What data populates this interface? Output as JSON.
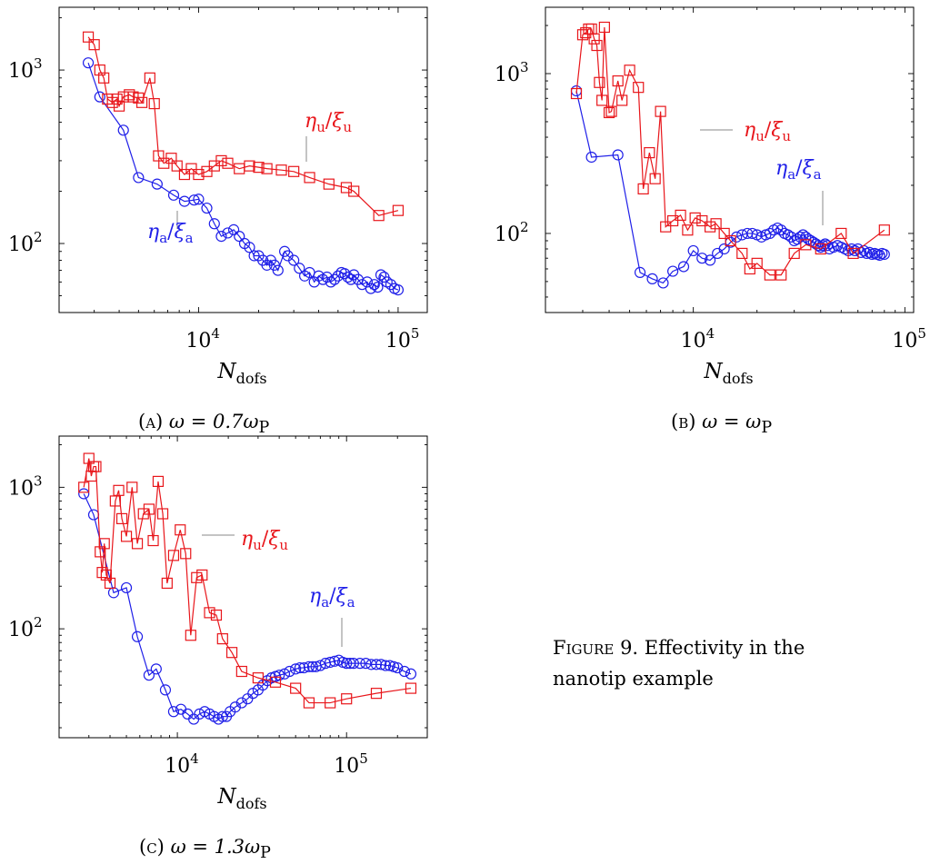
{
  "colors": {
    "red": "#e8161b",
    "blue": "#1f1fe8"
  },
  "figure_caption": {
    "label": "Figure",
    "number": "9.",
    "text": "Effectivity in the nanotip example"
  },
  "captions": [
    {
      "tag": "(a)",
      "eq": "ω = 0.7ω",
      "sub": "P"
    },
    {
      "tag": "(b)",
      "eq": "ω = ω",
      "sub": "P"
    },
    {
      "tag": "(c)",
      "eq": "ω = 1.3ω",
      "sub": "P"
    }
  ],
  "chart_data": [
    {
      "type": "line",
      "xscale": "log",
      "yscale": "log",
      "xlim": [
        2000,
        140000
      ],
      "ylim": [
        40,
        2300
      ],
      "xlabel": "N",
      "xlabel_sub": "dofs",
      "xticks": [
        "10^4",
        "10^5"
      ],
      "yticks": [
        "10^2",
        "10^3"
      ],
      "series": [
        {
          "name": "ηu/ξu",
          "marker": "square",
          "color": "red",
          "x": [
            2800,
            3000,
            3200,
            3350,
            3500,
            3700,
            3900,
            4000,
            4200,
            4500,
            4700,
            5000,
            5200,
            5700,
            6000,
            6300,
            6700,
            7300,
            7800,
            8500,
            9200,
            10000,
            11000,
            12000,
            13000,
            14000,
            16000,
            18000,
            20000,
            22000,
            26000,
            30000,
            36000,
            45000,
            55000,
            60000,
            80000,
            100000
          ],
          "y": [
            1550,
            1400,
            1000,
            900,
            680,
            650,
            680,
            620,
            700,
            720,
            700,
            690,
            650,
            900,
            640,
            320,
            290,
            310,
            280,
            250,
            270,
            250,
            260,
            280,
            300,
            290,
            270,
            280,
            275,
            270,
            265,
            260,
            240,
            220,
            210,
            200,
            145,
            155
          ]
        },
        {
          "name": "ηa/ξa",
          "marker": "circle",
          "color": "blue",
          "x": [
            2800,
            3200,
            4200,
            5000,
            6200,
            7500,
            8500,
            9500,
            10000,
            11000,
            12000,
            13000,
            14000,
            15000,
            16000,
            17000,
            18000,
            19000,
            20000,
            21000,
            22000,
            23000,
            24000,
            25000,
            27000,
            28000,
            30000,
            32000,
            34000,
            36000,
            38000,
            40000,
            42000,
            44000,
            46000,
            48000,
            50000,
            52000,
            54000,
            56000,
            58000,
            60000,
            63000,
            66000,
            70000,
            73000,
            76000,
            79000,
            82000,
            85000,
            88000,
            92000,
            96000,
            100000
          ],
          "y": [
            1100,
            700,
            450,
            240,
            220,
            190,
            175,
            178,
            180,
            160,
            130,
            110,
            115,
            120,
            110,
            100,
            95,
            85,
            85,
            80,
            75,
            80,
            75,
            70,
            90,
            85,
            80,
            72,
            65,
            68,
            60,
            65,
            62,
            64,
            60,
            62,
            65,
            68,
            67,
            64,
            62,
            66,
            62,
            58,
            60,
            55,
            58,
            56,
            66,
            64,
            60,
            58,
            55,
            54
          ]
        }
      ],
      "annotations": [
        {
          "text": "ηu/ξu"
        },
        {
          "text": "ηa/ξa"
        }
      ]
    },
    {
      "type": "line",
      "xscale": "log",
      "yscale": "log",
      "xlim": [
        2000,
        110000
      ],
      "ylim": [
        32,
        2600
      ],
      "xlabel": "N",
      "xlabel_sub": "dofs",
      "xticks": [
        "10^4",
        "10^5"
      ],
      "yticks": [
        "10^2",
        "10^3"
      ],
      "series": [
        {
          "name": "ηu/ξu",
          "marker": "square",
          "color": "red",
          "x": [
            2800,
            3000,
            3100,
            3200,
            3300,
            3400,
            3500,
            3600,
            3700,
            3800,
            4000,
            4100,
            4400,
            4600,
            5000,
            5500,
            5800,
            6200,
            6600,
            7000,
            7400,
            8000,
            8700,
            9400,
            10200,
            11000,
            12000,
            12800,
            14000,
            15000,
            17000,
            18500,
            20000,
            23000,
            26000,
            30000,
            34000,
            40000,
            50000,
            57000,
            80000
          ],
          "y": [
            750,
            1750,
            1800,
            1900,
            1900,
            1650,
            1500,
            880,
            680,
            1950,
            570,
            580,
            900,
            680,
            1050,
            820,
            190,
            320,
            220,
            580,
            110,
            120,
            130,
            105,
            125,
            120,
            110,
            115,
            100,
            90,
            75,
            60,
            65,
            55,
            55,
            75,
            85,
            80,
            100,
            75,
            105
          ]
        },
        {
          "name": "ηa/ξa",
          "marker": "circle",
          "color": "blue",
          "x": [
            2800,
            3300,
            4400,
            5600,
            6400,
            7200,
            8000,
            9000,
            10000,
            11000,
            12000,
            13000,
            14000,
            15000,
            16000,
            17000,
            18000,
            19000,
            20000,
            21000,
            22000,
            23000,
            24000,
            25000,
            26000,
            27000,
            28000,
            29000,
            30000,
            31000,
            32000,
            33000,
            34000,
            35000,
            36000,
            37000,
            38000,
            39000,
            40000,
            41000,
            42000,
            43000,
            44000,
            46000,
            48000,
            50000,
            52000,
            54000,
            56000,
            58000,
            60000,
            62000,
            64000,
            66000,
            68000,
            70000,
            72000,
            74000,
            76000,
            78000,
            80000
          ],
          "y": [
            780,
            300,
            310,
            57,
            52,
            49,
            58,
            62,
            78,
            70,
            68,
            75,
            80,
            88,
            95,
            98,
            100,
            100,
            98,
            95,
            98,
            100,
            105,
            108,
            105,
            100,
            98,
            95,
            90,
            92,
            95,
            98,
            95,
            92,
            90,
            88,
            86,
            84,
            82,
            84,
            86,
            84,
            80,
            82,
            84,
            82,
            80,
            78,
            80,
            78,
            80,
            76,
            78,
            75,
            76,
            74,
            75,
            74,
            73,
            75,
            74
          ]
        }
      ],
      "annotations": [
        {
          "text": "ηu/ξu"
        },
        {
          "text": "ηa/ξa"
        }
      ]
    },
    {
      "type": "line",
      "xscale": "log",
      "yscale": "log",
      "xlim": [
        2000,
        300000
      ],
      "ylim": [
        17,
        2300
      ],
      "xlabel": "N",
      "xlabel_sub": "dofs",
      "xticks": [
        "10^4",
        "10^5"
      ],
      "yticks": [
        "10^2",
        "10^3"
      ],
      "series": [
        {
          "name": "ηu/ξu",
          "marker": "square",
          "color": "red",
          "x": [
            2800,
            3000,
            3100,
            3200,
            3300,
            3500,
            3600,
            3700,
            3800,
            4000,
            4300,
            4500,
            4700,
            5000,
            5400,
            5800,
            6300,
            6800,
            7200,
            7700,
            8200,
            8700,
            9500,
            10400,
            11200,
            12000,
            13000,
            14000,
            15500,
            17000,
            18500,
            21000,
            24000,
            30000,
            38000,
            50000,
            60000,
            80000,
            100000,
            150000,
            240000
          ],
          "y": [
            1000,
            1600,
            1200,
            1400,
            1400,
            350,
            250,
            400,
            240,
            210,
            800,
            950,
            600,
            450,
            1000,
            400,
            650,
            700,
            420,
            1100,
            650,
            210,
            330,
            500,
            340,
            90,
            230,
            240,
            130,
            125,
            85,
            68,
            50,
            45,
            42,
            38,
            30,
            30,
            32,
            35,
            38
          ]
        },
        {
          "name": "ηa/ξa",
          "marker": "circle",
          "color": "blue",
          "x": [
            2800,
            3200,
            4200,
            5000,
            5800,
            6800,
            7500,
            8500,
            9500,
            10500,
            11500,
            12500,
            13500,
            14500,
            15500,
            16500,
            17500,
            18500,
            19500,
            20500,
            22000,
            24000,
            26000,
            28000,
            30000,
            32000,
            34000,
            36000,
            38000,
            40000,
            43000,
            46000,
            50000,
            53000,
            56000,
            60000,
            63000,
            66000,
            70000,
            75000,
            80000,
            85000,
            90000,
            95000,
            100000,
            105000,
            110000,
            120000,
            130000,
            140000,
            150000,
            160000,
            170000,
            180000,
            190000,
            200000,
            220000,
            240000
          ],
          "y": [
            900,
            640,
            180,
            195,
            88,
            47,
            52,
            37,
            26,
            27,
            25,
            23,
            25,
            26,
            25,
            24,
            23,
            24,
            24,
            26,
            28,
            30,
            32,
            35,
            37,
            40,
            43,
            45,
            46,
            47,
            48,
            50,
            52,
            53,
            53,
            54,
            54,
            54,
            55,
            57,
            58,
            59,
            60,
            58,
            57,
            57,
            57,
            57,
            57,
            56,
            56,
            56,
            55,
            55,
            54,
            53,
            50,
            48
          ]
        }
      ],
      "annotations": [
        {
          "text": "ηu/ξu"
        },
        {
          "text": "ηa/ξa"
        }
      ]
    }
  ]
}
